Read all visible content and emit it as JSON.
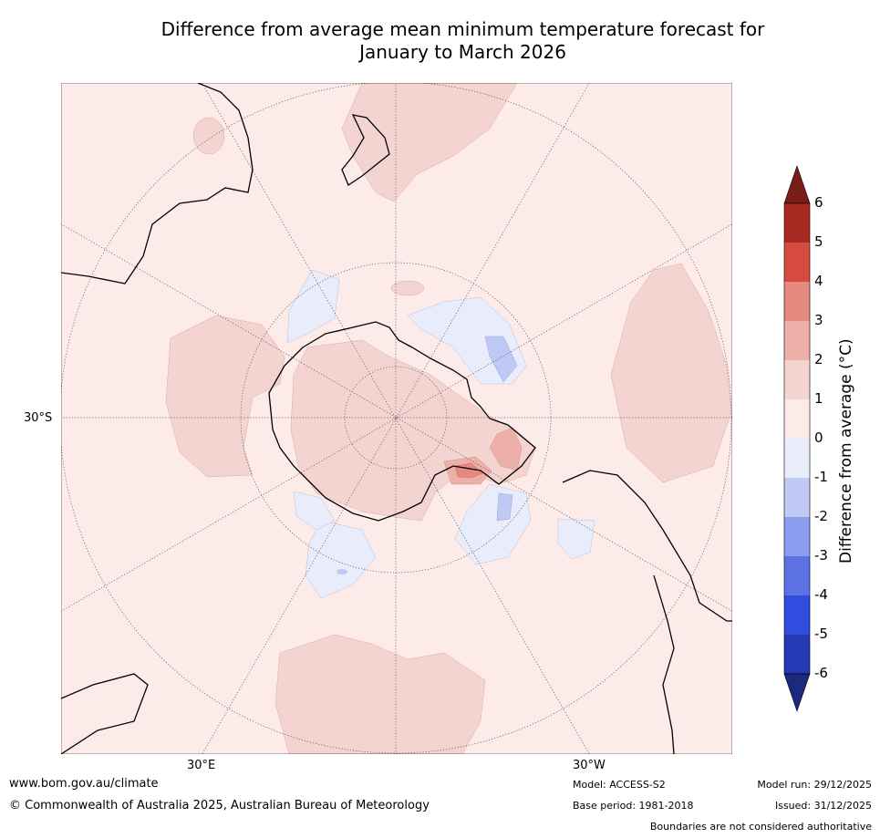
{
  "title": {
    "line1": "Difference from average mean minimum temperature forecast for",
    "line2": "January to March 2026"
  },
  "map": {
    "labels": {
      "lat": "30°S",
      "lon_east": "30°E",
      "lon_west": "30°W"
    },
    "colors": {
      "background": "#fcebe9",
      "anom_0_1": "#fcebe9",
      "anom_1_2": "#f4d4d1",
      "anom_2_3": "#ecb0a8",
      "anom_3_4": "#e48a7f",
      "anom_m1_0": "#e8ecfb",
      "anom_m2_m1": "#c0c9f3",
      "land_line": "#000000"
    }
  },
  "colorbar": {
    "title": "Difference from average (°C)",
    "ticks": [
      "6",
      "5",
      "4",
      "3",
      "2",
      "1",
      "0",
      "-1",
      "-2",
      "-3",
      "-4",
      "-5",
      "-6"
    ],
    "colors": [
      "#7a1d17",
      "#a92a22",
      "#d64b3e",
      "#e48a7f",
      "#ecb0a8",
      "#f4d4d1",
      "#fcebe9",
      "#e8ecfb",
      "#c0c9f3",
      "#8c9cee",
      "#5c71e3",
      "#2f4ee0",
      "#2639b4",
      "#1b2a7e"
    ]
  },
  "footer": {
    "url": "www.bom.gov.au/climate",
    "copyright": "© Commonwealth of Australia 2025, Australian Bureau of Meteorology",
    "model": "Model: ACCESS-S2",
    "base_period": "Base period: 1981-2018",
    "model_run": "Model run: 29/12/2025",
    "issued": "Issued: 31/12/2025",
    "disclaimer": "Boundaries are not considered authoritative"
  }
}
